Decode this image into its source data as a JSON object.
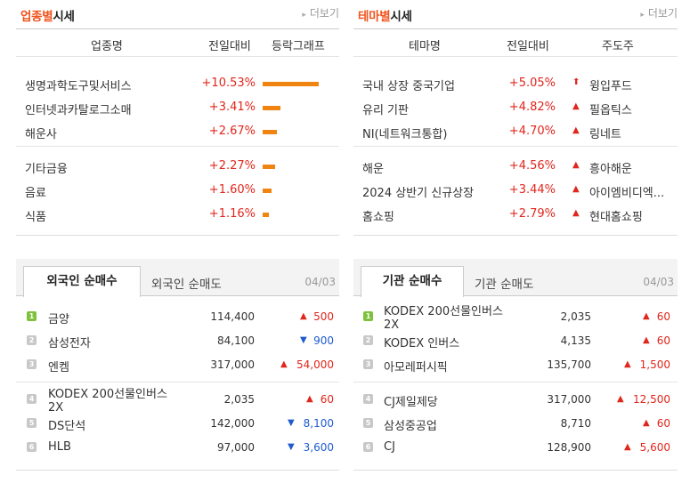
{
  "industry": {
    "title_accent": "업종별",
    "title_rest": "시세",
    "more": "더보기",
    "headers": [
      "업종명",
      "전일대비",
      "등락그래프"
    ],
    "rows": [
      {
        "name": "생명과학도구및서비스",
        "change": "+10.53%",
        "bar": 10.53
      },
      {
        "name": "인터넷과카탈로그소매",
        "change": "+3.41%",
        "bar": 3.41
      },
      {
        "name": "해운사",
        "change": "+2.67%",
        "bar": 2.67
      },
      {
        "name": "기타금융",
        "change": "+2.27%",
        "bar": 2.27
      },
      {
        "name": "음료",
        "change": "+1.60%",
        "bar": 1.6
      },
      {
        "name": "식품",
        "change": "+1.16%",
        "bar": 1.16
      }
    ]
  },
  "theme": {
    "title_accent": "테마별",
    "title_rest": "시세",
    "more": "더보기",
    "headers": [
      "테마명",
      "전일대비",
      "주도주"
    ],
    "rows": [
      {
        "name": "국내 상장 중국기업",
        "change": "+5.05%",
        "arrow": "⬆",
        "leader": "윙입푸드"
      },
      {
        "name": "유리 기판",
        "change": "+4.82%",
        "arrow": "▲",
        "leader": "필옵틱스"
      },
      {
        "name": "NI(네트워크통합)",
        "change": "+4.70%",
        "arrow": "▲",
        "leader": "링네트"
      },
      {
        "name": "해운",
        "change": "+4.56%",
        "arrow": "▲",
        "leader": "흥아해운"
      },
      {
        "name": "2024 상반기 신규상장",
        "change": "+3.44%",
        "arrow": "▲",
        "leader": "아이엠비디엑..."
      },
      {
        "name": "홈쇼핑",
        "change": "+2.79%",
        "arrow": "▲",
        "leader": "현대홈쇼핑"
      }
    ]
  },
  "foreign": {
    "tab_active": "외국인 순매수",
    "tab_other": "외국인 순매도",
    "date": "04/03",
    "rows": [
      {
        "rank": "1",
        "name": "금양",
        "price": "114,400",
        "dir": "▲",
        "change": "500"
      },
      {
        "rank": "2",
        "name": "삼성전자",
        "price": "84,100",
        "dir": "▼",
        "change": "900"
      },
      {
        "rank": "3",
        "name": "엔켐",
        "price": "317,000",
        "dir": "▲",
        "change": "54,000"
      },
      {
        "rank": "4",
        "name": "KODEX 200선물인버스2X",
        "name_l1": "KODEX 200선물인버스",
        "name_l2": "2X",
        "price": "2,035",
        "dir": "▲",
        "change": "60"
      },
      {
        "rank": "5",
        "name": "DS단석",
        "price": "142,000",
        "dir": "▼",
        "change": "8,100"
      },
      {
        "rank": "6",
        "name": "HLB",
        "price": "97,000",
        "dir": "▼",
        "change": "3,600"
      }
    ]
  },
  "institution": {
    "tab_active": "기관 순매수",
    "tab_other": "기관 순매도",
    "date": "04/03",
    "rows": [
      {
        "rank": "1",
        "name": "KODEX 200선물인버스2X",
        "name_l1": "KODEX 200선물인버스",
        "name_l2": "2X",
        "price": "2,035",
        "dir": "▲",
        "change": "60"
      },
      {
        "rank": "2",
        "name": "KODEX 인버스",
        "price": "4,135",
        "dir": "▲",
        "change": "60"
      },
      {
        "rank": "3",
        "name": "아모레퍼시픽",
        "price": "135,700",
        "dir": "▲",
        "change": "1,500"
      },
      {
        "rank": "4",
        "name": "CJ제일제당",
        "price": "317,000",
        "dir": "▲",
        "change": "12,500"
      },
      {
        "rank": "5",
        "name": "삼성중공업",
        "price": "8,710",
        "dir": "▲",
        "change": "60"
      },
      {
        "rank": "6",
        "name": "CJ",
        "price": "128,900",
        "dir": "▲",
        "change": "5,600"
      }
    ]
  }
}
